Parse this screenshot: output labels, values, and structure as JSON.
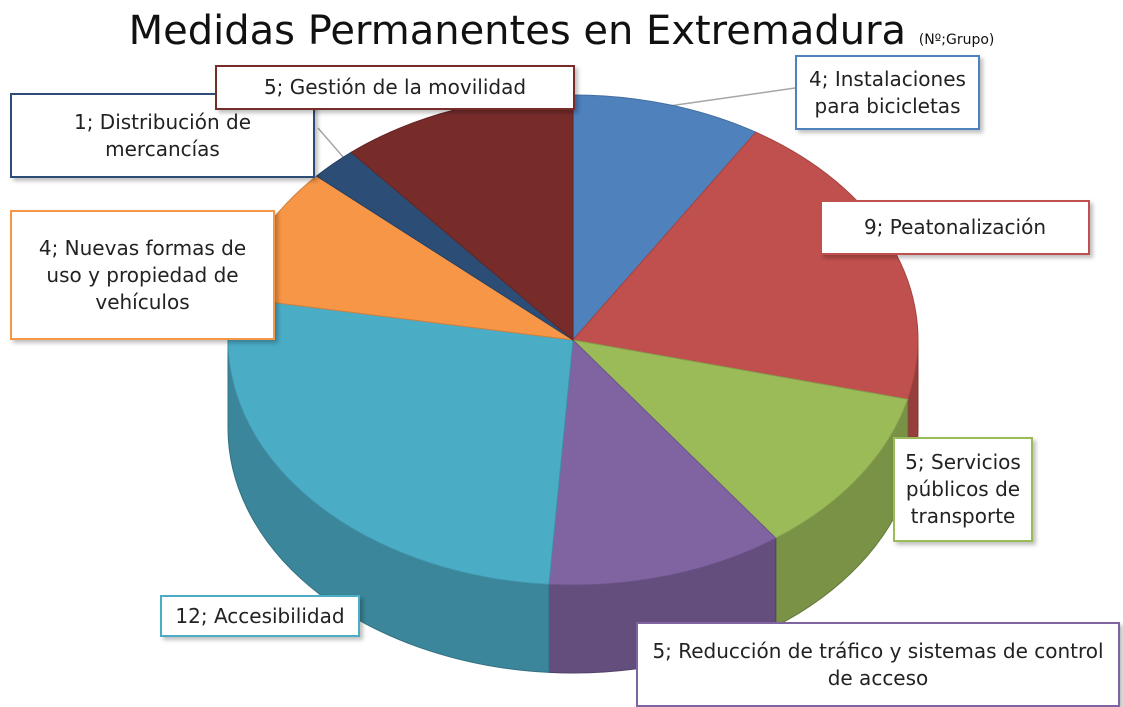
{
  "chart_data": {
    "type": "pie3d",
    "title": "Medidas Permanentes en Extremadura",
    "subtitle": "(Nº;Grupo)",
    "values": [
      4,
      9,
      5,
      5,
      12,
      4,
      1,
      5
    ],
    "value_labels": [
      "4; Instalaciones para bicicletas",
      "9; Peatonalización",
      "5; Servicios públicos de transporte",
      "5; Reducción de tráfico y sistemas de control de acceso",
      "12; Accesibilidad",
      "4; Nuevas formas de uso y propiedad de vehículos",
      "1; Distribución de mercancías",
      "5; Gestión de la movilidad"
    ],
    "colors": [
      "#4f81bd",
      "#c0504d",
      "#9bbb59",
      "#8064a2",
      "#4bacc6",
      "#f79646",
      "#2c4d75",
      "#772c2a"
    ]
  }
}
